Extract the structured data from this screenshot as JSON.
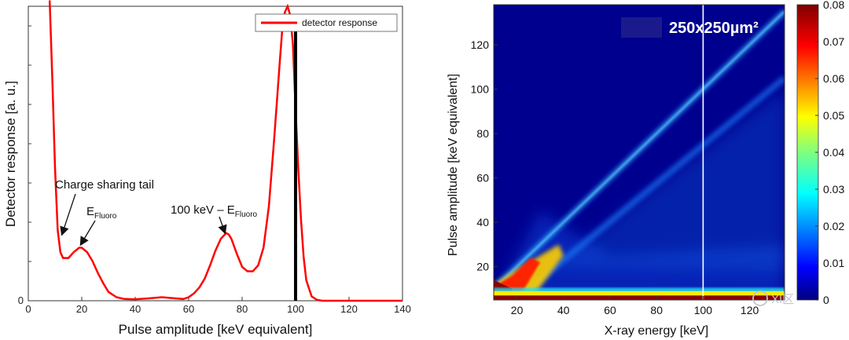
{
  "chart_data": [
    {
      "type": "line",
      "title": "",
      "xlabel": "Pulse amplitude [keV equivalent]",
      "ylabel": "Detector response [a. u.]",
      "xlim": [
        0,
        140
      ],
      "x_ticks": [
        "0",
        "20",
        "40",
        "60",
        "80",
        "100",
        "120",
        "140"
      ],
      "y_ticks": [
        "0"
      ],
      "ylim": [
        0,
        1.0
      ],
      "grid": false,
      "legend": {
        "position": "top-right",
        "entries": [
          "detector response"
        ]
      },
      "series": [
        {
          "name": "detector response",
          "color": "#ff0000",
          "x": [
            8,
            9,
            10,
            11,
            12,
            13,
            15,
            17,
            19,
            20,
            22,
            24,
            26,
            28,
            30,
            33,
            36,
            40,
            45,
            50,
            55,
            58,
            60,
            62,
            64,
            66,
            68,
            70,
            72,
            74,
            75,
            76,
            78,
            80,
            82,
            84,
            86,
            88,
            90,
            92,
            94,
            95,
            96,
            97,
            98,
            99,
            100,
            101,
            102,
            103,
            104,
            106,
            108,
            110,
            120,
            130,
            140
          ],
          "y": [
            1.02,
            0.75,
            0.45,
            0.24,
            0.165,
            0.145,
            0.145,
            0.165,
            0.18,
            0.18,
            0.165,
            0.135,
            0.095,
            0.06,
            0.03,
            0.012,
            0.006,
            0.005,
            0.008,
            0.012,
            0.008,
            0.006,
            0.012,
            0.025,
            0.045,
            0.075,
            0.12,
            0.17,
            0.21,
            0.23,
            0.225,
            0.21,
            0.16,
            0.115,
            0.1,
            0.1,
            0.12,
            0.18,
            0.32,
            0.55,
            0.8,
            0.92,
            0.98,
            1.0,
            0.97,
            0.87,
            0.65,
            0.45,
            0.28,
            0.15,
            0.07,
            0.015,
            0.003,
            0.0,
            0.0,
            0.0,
            0.0
          ]
        }
      ],
      "vertical_line": {
        "x": 100,
        "color": "#000000"
      },
      "annotations": [
        {
          "text": "Charge sharing tail",
          "points_to": [
            12,
            0.24
          ]
        },
        {
          "text": "E",
          "sub": "Fluoro",
          "points_to": [
            20,
            0.18
          ]
        },
        {
          "text": "100 keV – E",
          "sub": "Fluoro",
          "points_to": [
            74,
            0.23
          ]
        }
      ]
    },
    {
      "type": "heatmap",
      "title": "",
      "xlabel": "X-ray energy [keV]",
      "ylabel": "Pulse amplitude [keV equivalent]",
      "xlim": [
        10,
        135
      ],
      "ylim": [
        5,
        138
      ],
      "x_ticks": [
        "20",
        "40",
        "60",
        "80",
        "100",
        "120"
      ],
      "y_ticks": [
        "20",
        "40",
        "60",
        "80",
        "100",
        "120"
      ],
      "colorbar": {
        "min": 0,
        "max": 0.08,
        "ticks": [
          "0",
          "0.01",
          "0.02",
          "0.03",
          "0.04",
          "0.05",
          "0.06",
          "0.07",
          "0.08"
        ]
      },
      "inset_label": "250x250µm²",
      "vertical_line": {
        "x": 100,
        "color": "#ffffff"
      },
      "features": [
        {
          "name": "photopeak diagonal",
          "from": [
            10,
            10
          ],
          "to": [
            135,
            135
          ],
          "value": 0.03
        },
        {
          "name": "low-energy threshold band",
          "y": 8,
          "value": 0.065
        },
        {
          "name": "escape diagonal",
          "from": [
            25,
            10
          ],
          "to": [
            135,
            105
          ],
          "value": 0.025
        },
        {
          "name": "charge sharing region",
          "x_range": [
            10,
            35
          ],
          "y_range": [
            8,
            35
          ],
          "value": 0.07
        }
      ]
    }
  ],
  "watermark": {
    "text": "XI区"
  }
}
